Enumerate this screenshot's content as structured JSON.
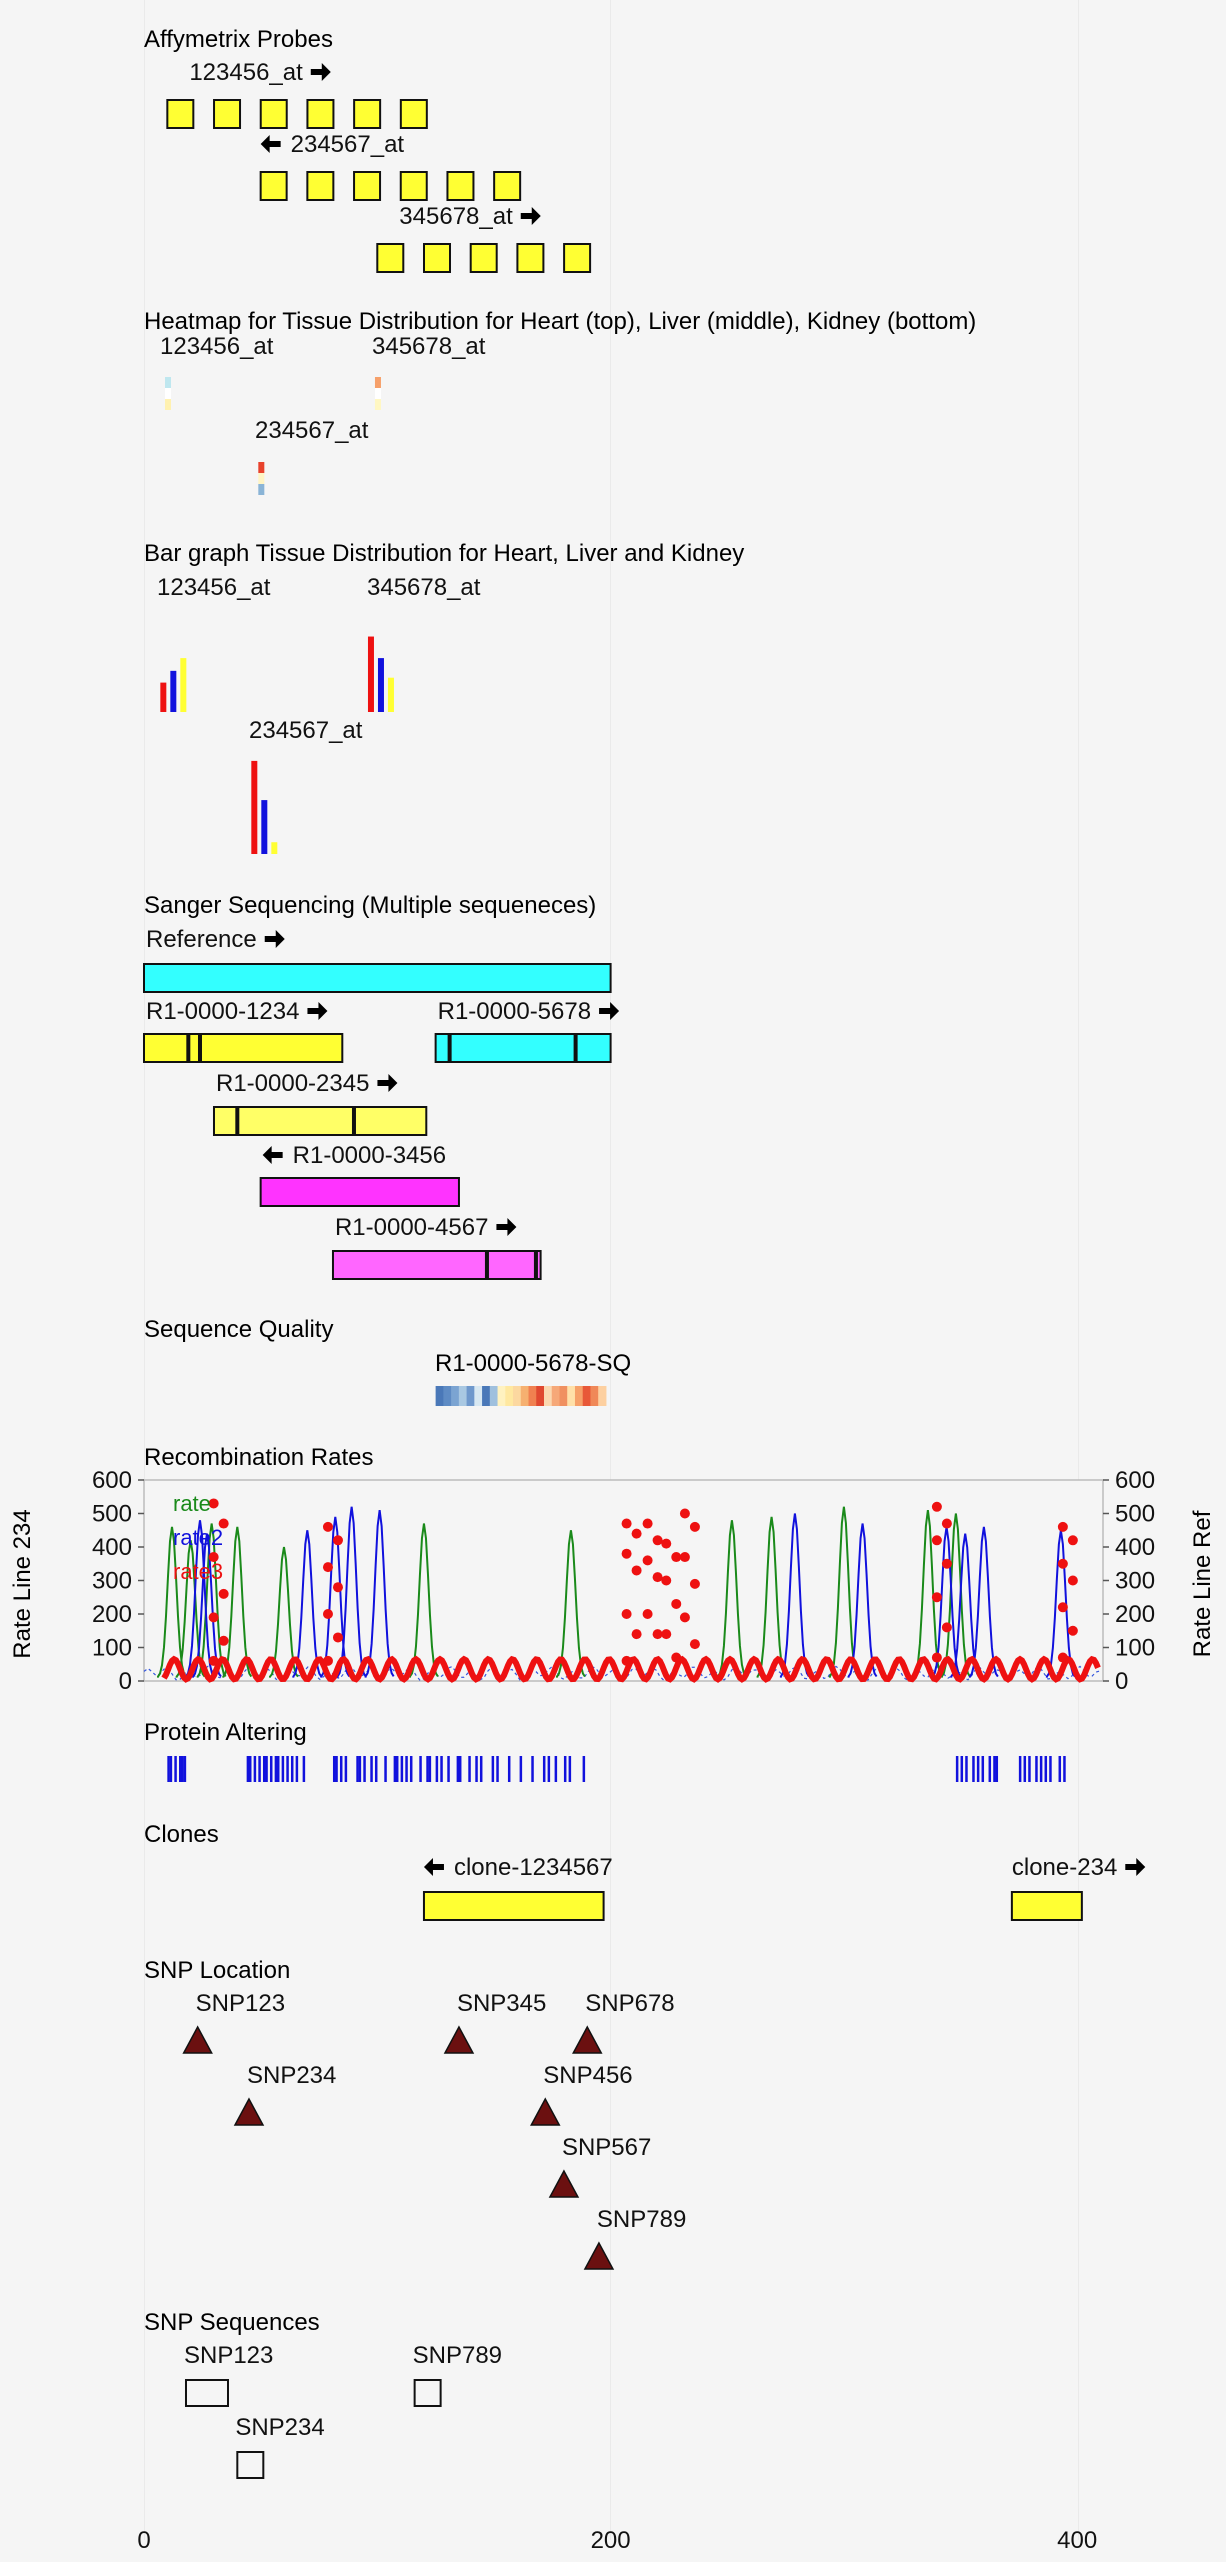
{
  "tracks": {
    "affy": {
      "title": "Affymetrix Probes",
      "probes": [
        {
          "label": "123456_at",
          "dir": "right",
          "start": 10,
          "n": 6
        },
        {
          "label": "234567_at",
          "dir": "left",
          "start": 50,
          "n": 6
        },
        {
          "label": "345678_at",
          "dir": "right",
          "start": 100,
          "n": 5
        }
      ],
      "color": "#ffff33"
    },
    "heatmap": {
      "title": "Heatmap for Tissue Distribution for Heart (top), Liver (middle), Kidney (bottom)",
      "items": [
        {
          "label": "123456_at",
          "pos": 9,
          "colors": [
            "#bfe7ef",
            "#ffffff",
            "#fff1b0"
          ]
        },
        {
          "label": "345678_at",
          "pos": 99,
          "colors": [
            "#f6a06a",
            "#ffffff",
            "#fff7c2"
          ]
        },
        {
          "label": "234567_at",
          "pos": 49,
          "colors": [
            "#e8422c",
            "#fff4c4",
            "#8ab4d6"
          ]
        }
      ]
    },
    "bargraph": {
      "title": "Bar graph Tissue Distribution for Heart, Liver and Kidney",
      "series": [
        "Heart",
        "Liver",
        "Kidney"
      ],
      "colors": [
        "#ee1111",
        "#1111dd",
        "#ffff33"
      ],
      "items": [
        {
          "label": "123456_at",
          "pos": 7,
          "values": [
            30,
            42,
            55
          ]
        },
        {
          "label": "345678_at",
          "pos": 96,
          "values": [
            77,
            55,
            35
          ]
        },
        {
          "label": "234567_at",
          "pos": 46,
          "values": [
            95,
            55,
            12
          ]
        }
      ]
    },
    "sanger": {
      "title": "Sanger Sequencing (Multiple sequeneces)",
      "reads": [
        {
          "label": "Reference",
          "dir": "right",
          "start": 0,
          "end": 200,
          "color": "#33ffff",
          "marks": []
        },
        {
          "label": "R1-0000-1234",
          "dir": "right",
          "start": 0,
          "end": 85,
          "color": "#ffff33",
          "marks": [
            19,
            24
          ]
        },
        {
          "label": "R1-0000-5678",
          "dir": "right",
          "start": 125,
          "end": 200,
          "color": "#33ffff",
          "marks": [
            131,
            185
          ]
        },
        {
          "label": "R1-0000-2345",
          "dir": "right",
          "start": 30,
          "end": 121,
          "color": "#ffff66",
          "marks": [
            40,
            90
          ]
        },
        {
          "label": "R1-0000-3456",
          "dir": "left",
          "start": 50,
          "end": 135,
          "color": "#ff33ff",
          "marks": []
        },
        {
          "label": "R1-0000-4567",
          "dir": "right",
          "start": 81,
          "end": 170,
          "color": "#ff66ff",
          "marks": [
            147,
            168
          ]
        }
      ]
    },
    "quality": {
      "title": "Sequence Quality",
      "label": "R1-0000-5678-SQ",
      "start": 125,
      "end": 198,
      "colors": [
        "#4a78b8",
        "#5e8bc4",
        "#7ba4d2",
        "#a9c8e2",
        "#6f98cc",
        "#d8e8f2",
        "#4a78b8",
        "#9fc0de",
        "#fff2c0",
        "#ffe8a0",
        "#fcd8a0",
        "#f6b070",
        "#f08050",
        "#e04830",
        "#fbd8b0",
        "#f6a878",
        "#f09060",
        "#ffe0a8",
        "#f6a068",
        "#e85838",
        "#f08858",
        "#fdd0a0"
      ]
    },
    "recombination": {
      "title": "Recombination Rates",
      "left_label": "Rate Line 234",
      "right_label": "Rate Line Ref",
      "legend": [
        "rate",
        "rate2",
        "rate3"
      ],
      "legend_colors": [
        "#1a8a1a",
        "#1111dd",
        "#ee1111"
      ],
      "ticks": [
        "0",
        "100",
        "200",
        "300",
        "400",
        "500",
        "600"
      ],
      "ymax": 600,
      "green_peaks": [
        [
          12,
          460
        ],
        [
          20,
          420
        ],
        [
          29,
          470
        ],
        [
          40,
          460
        ],
        [
          60,
          400
        ],
        [
          120,
          470
        ],
        [
          183,
          450
        ],
        [
          252,
          480
        ],
        [
          269,
          490
        ],
        [
          300,
          520
        ],
        [
          336,
          510
        ],
        [
          348,
          500
        ]
      ],
      "blue_peaks": [
        [
          24,
          480
        ],
        [
          27,
          440
        ],
        [
          70,
          450
        ],
        [
          82,
          490
        ],
        [
          89,
          520
        ],
        [
          101,
          510
        ],
        [
          279,
          500
        ],
        [
          308,
          470
        ],
        [
          344,
          460
        ],
        [
          352,
          440
        ],
        [
          360,
          460
        ],
        [
          393,
          450
        ]
      ],
      "red_dot_clusters": [
        [
          32,
          [
            530,
            470,
            370,
            260,
            190,
            120,
            60
          ]
        ],
        [
          81,
          [
            460,
            420,
            340,
            280,
            200,
            130,
            60
          ]
        ],
        [
          209,
          [
            470,
            440,
            380,
            330,
            200,
            140,
            60
          ]
        ],
        [
          218,
          [
            470,
            420,
            360,
            310,
            200,
            140
          ]
        ],
        [
          226,
          [
            410,
            370,
            300,
            230,
            140,
            70
          ]
        ],
        [
          234,
          [
            500,
            460,
            370,
            290,
            190,
            110
          ]
        ],
        [
          342,
          [
            520,
            470,
            420,
            350,
            250,
            160,
            70
          ]
        ],
        [
          396,
          [
            460,
            420,
            350,
            300,
            220,
            150,
            70
          ]
        ]
      ]
    },
    "protein": {
      "title": "Protein Altering",
      "lines": [
        10,
        11,
        13,
        15,
        16,
        17,
        44,
        45,
        47,
        49,
        51,
        52,
        54,
        56,
        57,
        59,
        61,
        63,
        65,
        68,
        81,
        82,
        84,
        86,
        91,
        92,
        94,
        97,
        99,
        103,
        107,
        108,
        110,
        112,
        114,
        118,
        121,
        122,
        125,
        127,
        130,
        134,
        135,
        139,
        142,
        144,
        149,
        151,
        156,
        161,
        166,
        171,
        173,
        176,
        180,
        182,
        188,
        348,
        350,
        352,
        355,
        357,
        359,
        362,
        364,
        365,
        375,
        377,
        379,
        382,
        384,
        386,
        388,
        392,
        394
      ]
    },
    "clones": {
      "title": "Clones",
      "items": [
        {
          "label": "clone-1234567",
          "dir": "left",
          "start": 120,
          "end": 197
        },
        {
          "label": "clone-234",
          "dir": "right",
          "start": 372,
          "end": 402
        }
      ],
      "color": "#ffff33"
    },
    "snps": {
      "title": "SNP Location",
      "items": [
        {
          "label": "SNP123",
          "pos": 23,
          "row": 0
        },
        {
          "label": "SNP345",
          "pos": 135,
          "row": 0
        },
        {
          "label": "SNP678",
          "pos": 190,
          "row": 0
        },
        {
          "label": "SNP234",
          "pos": 45,
          "row": 1
        },
        {
          "label": "SNP456",
          "pos": 172,
          "row": 1
        },
        {
          "label": "SNP567",
          "pos": 180,
          "row": 2
        },
        {
          "label": "SNP789",
          "pos": 195,
          "row": 3
        }
      ],
      "color": "#6b1010"
    },
    "snpseq": {
      "title": "SNP Sequences",
      "items": [
        {
          "label": "SNP123",
          "pos": 18,
          "row": 0
        },
        {
          "label": "SNP789",
          "pos": 116,
          "row": 0
        },
        {
          "label": "SNP234",
          "pos": 40,
          "row": 1
        }
      ]
    }
  },
  "axis": {
    "ticks": [
      "0",
      "200",
      "400"
    ]
  }
}
